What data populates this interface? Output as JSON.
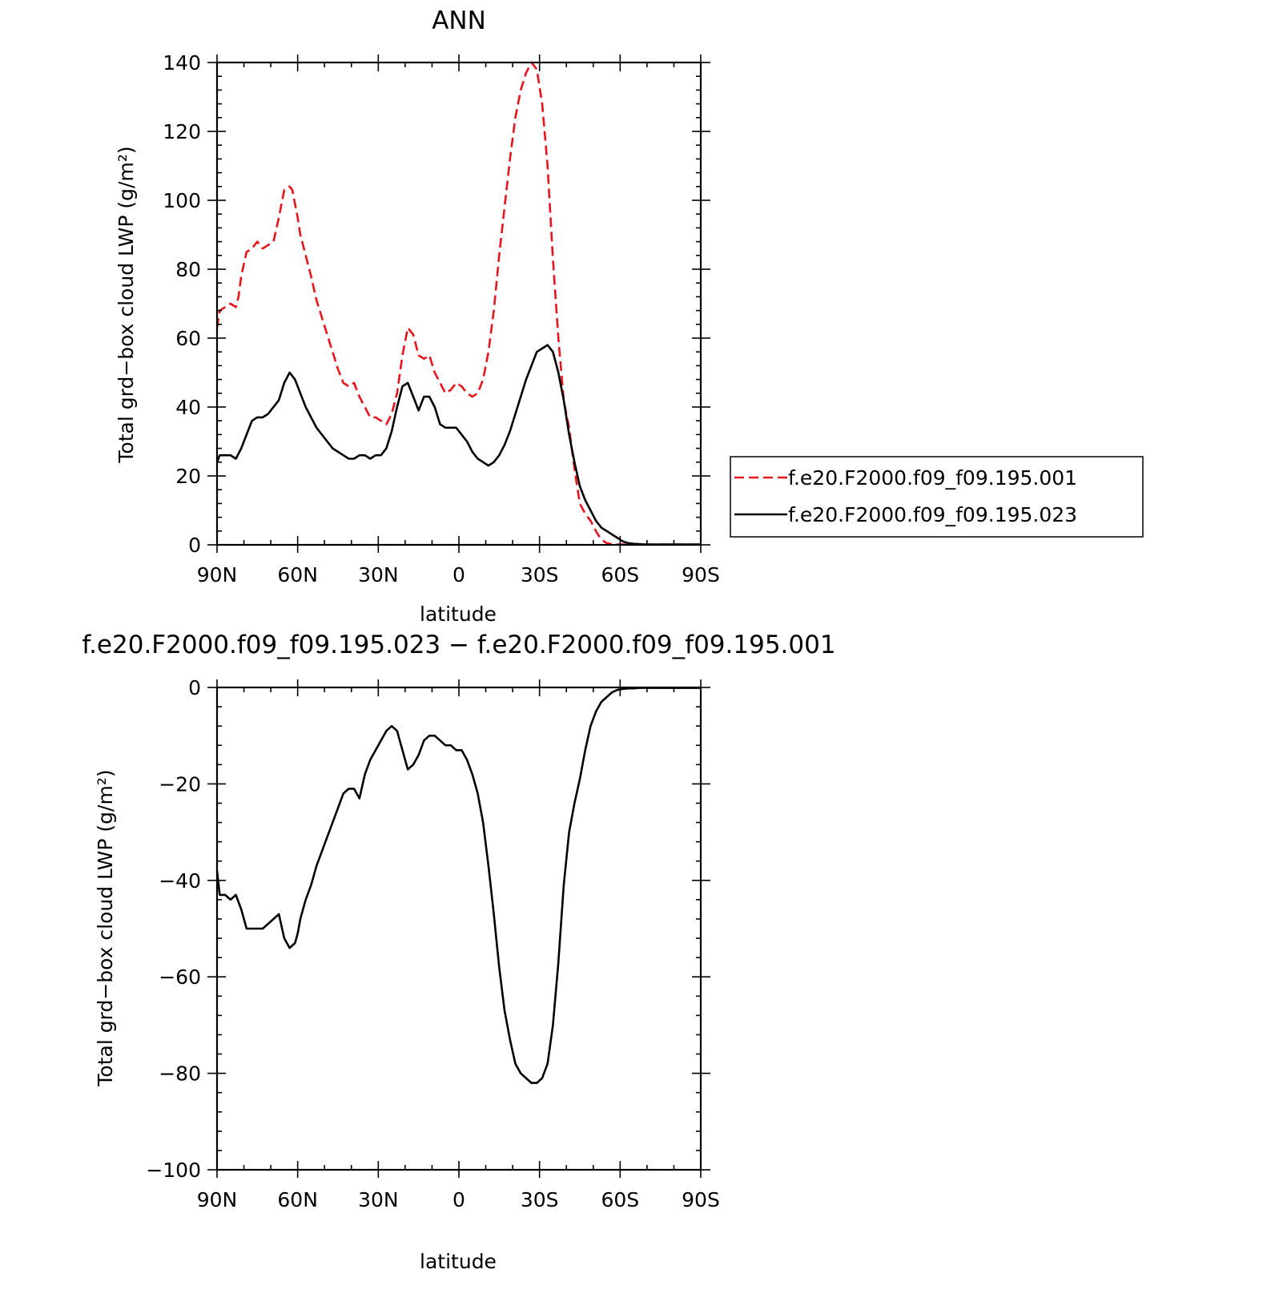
{
  "chart_data": [
    {
      "type": "line",
      "title": "ANN",
      "xlabel": "latitude",
      "ylabel": "Total grd−box cloud LWP (g/m²)",
      "ylim": [
        0,
        140
      ],
      "xlim": [
        90,
        -90
      ],
      "xtick_labels": [
        "90N",
        "60N",
        "30N",
        "0",
        "30S",
        "60S",
        "90S"
      ],
      "ytick_labels": [
        "0",
        "20",
        "40",
        "60",
        "80",
        "100",
        "120",
        "140"
      ],
      "legend_position": "right",
      "series": [
        {
          "name": "f.e20.F2000.f09_f09.195.001",
          "color": "#e8141c",
          "dash": "dashed",
          "x": [
            90,
            89,
            87,
            85,
            83,
            82,
            81,
            79,
            77,
            75,
            73,
            71,
            69,
            67,
            65,
            63,
            62,
            61,
            60,
            59,
            57,
            55,
            53,
            51,
            49,
            47,
            45,
            43,
            41,
            39,
            37,
            35,
            33,
            31,
            29,
            27,
            25,
            23,
            21,
            19,
            17,
            15,
            13,
            11,
            9,
            7,
            5,
            3,
            1,
            -1,
            -3,
            -5,
            -7,
            -9,
            -11,
            -13,
            -15,
            -17,
            -19,
            -21,
            -23,
            -25,
            -27,
            -29,
            -31,
            -33,
            -35,
            -37,
            -39,
            -41,
            -43,
            -45,
            -47,
            -49,
            -51,
            -53,
            -55,
            -57,
            -59,
            -61,
            -63,
            -65,
            -67,
            -69,
            -71,
            -73,
            -75,
            -77,
            -79,
            -81,
            -83,
            -85,
            -87,
            -89,
            -90
          ],
          "y": [
            63,
            68,
            69,
            70,
            69,
            72,
            78,
            85,
            86,
            88,
            86,
            87,
            88,
            95,
            103,
            104,
            103,
            99,
            95,
            90,
            84,
            78,
            71,
            66,
            61,
            56,
            51,
            47,
            46,
            47,
            43,
            40,
            37,
            37,
            36,
            35,
            38,
            44,
            55,
            63,
            61,
            55,
            54,
            55,
            50,
            47,
            44,
            45,
            47,
            46,
            44,
            43,
            44,
            48,
            56,
            68,
            84,
            98,
            112,
            124,
            132,
            137,
            140,
            138,
            128,
            110,
            83,
            60,
            42,
            34,
            22,
            12,
            9,
            7,
            4,
            1.5,
            0.5,
            0.2,
            0.1,
            0.1,
            0.1,
            0.1,
            0.1,
            0.1,
            0.1,
            0.1,
            0.1,
            0.1,
            0.1,
            0.1,
            0.1,
            0.1,
            0.1,
            0.1,
            0.1
          ]
        },
        {
          "name": "f.e20.F2000.f09_f09.195.023",
          "color": "#000000",
          "dash": "solid",
          "x": [
            90,
            89,
            87,
            85,
            83,
            81,
            79,
            77,
            75,
            73,
            71,
            69,
            67,
            65,
            63,
            61,
            60,
            59,
            57,
            55,
            53,
            51,
            49,
            47,
            45,
            43,
            41,
            39,
            37,
            35,
            33,
            31,
            29,
            27,
            25,
            23,
            21,
            19,
            17,
            15,
            13,
            11,
            9,
            7,
            5,
            3,
            1,
            -1,
            -3,
            -5,
            -7,
            -9,
            -11,
            -13,
            -15,
            -17,
            -19,
            -21,
            -23,
            -25,
            -27,
            -29,
            -31,
            -33,
            -35,
            -37,
            -39,
            -41,
            -43,
            -45,
            -47,
            -49,
            -51,
            -53,
            -55,
            -57,
            -59,
            -61,
            -63,
            -65,
            -67,
            -69,
            -71,
            -73,
            -75,
            -77,
            -79,
            -81,
            -83,
            -85,
            -87,
            -89,
            -90
          ],
          "y": [
            24,
            26,
            26,
            26,
            25,
            28,
            32,
            36,
            37,
            37,
            38,
            40,
            42,
            47,
            50,
            48,
            46,
            44,
            40,
            37,
            34,
            32,
            30,
            28,
            27,
            26,
            25,
            25,
            26,
            26,
            25,
            26,
            26,
            28,
            33,
            40,
            46,
            47,
            43,
            39,
            43,
            43,
            40,
            35,
            34,
            34,
            34,
            32,
            30,
            27,
            25,
            24,
            23,
            24,
            26,
            29,
            33,
            38,
            43,
            48,
            52,
            56,
            57,
            58,
            56,
            50,
            42,
            32,
            24,
            17,
            13,
            10,
            7,
            5,
            4,
            3,
            2,
            1,
            0.5,
            0.3,
            0.2,
            0.1,
            0.1,
            0.1,
            0.1,
            0.1,
            0.1,
            0.1,
            0.1,
            0.1,
            0.1,
            0.1,
            0.1
          ]
        }
      ]
    },
    {
      "type": "line",
      "title": "f.e20.F2000.f09_f09.195.023 − f.e20.F2000.f09_f09.195.001",
      "xlabel": "latitude",
      "ylabel": "Total grd−box cloud LWP (g/m²)",
      "ylim": [
        -100,
        0
      ],
      "xlim": [
        90,
        -90
      ],
      "xtick_labels": [
        "90N",
        "60N",
        "30N",
        "0",
        "30S",
        "60S",
        "90S"
      ],
      "ytick_labels": [
        "0",
        "−20",
        "−40",
        "−60",
        "−80",
        "−100"
      ],
      "series": [
        {
          "color": "#000000",
          "dash": "solid",
          "x": [
            90,
            89,
            87,
            85,
            83,
            81,
            79,
            77,
            75,
            73,
            71,
            69,
            67,
            65,
            63,
            61,
            60,
            59,
            57,
            55,
            53,
            51,
            49,
            47,
            45,
            43,
            41,
            39,
            37,
            35,
            33,
            31,
            29,
            27,
            25,
            23,
            21,
            19,
            17,
            15,
            13,
            11,
            9,
            7,
            5,
            3,
            1,
            -1,
            -3,
            -5,
            -7,
            -9,
            -11,
            -13,
            -15,
            -17,
            -19,
            -21,
            -23,
            -25,
            -27,
            -29,
            -31,
            -33,
            -35,
            -37,
            -39,
            -41,
            -43,
            -45,
            -47,
            -49,
            -51,
            -53,
            -55,
            -57,
            -59,
            -61,
            -63,
            -65,
            -67,
            -69,
            -71,
            -73,
            -75,
            -77,
            -79,
            -81,
            -83,
            -85,
            -87,
            -89,
            -90
          ],
          "y": [
            -38,
            -43,
            -43,
            -44,
            -43,
            -46,
            -50,
            -50,
            -50,
            -50,
            -49,
            -48,
            -47,
            -52,
            -54,
            -53,
            -51,
            -48,
            -44,
            -41,
            -37,
            -34,
            -31,
            -28,
            -25,
            -22,
            -21,
            -21,
            -23,
            -18,
            -15,
            -13,
            -11,
            -9,
            -8,
            -9,
            -13,
            -17,
            -16,
            -14,
            -11,
            -10,
            -10,
            -11,
            -12,
            -12,
            -13,
            -13,
            -15,
            -18,
            -22,
            -28,
            -37,
            -47,
            -58,
            -67,
            -73,
            -78,
            -80,
            -81,
            -82,
            -82,
            -81,
            -78,
            -70,
            -57,
            -41,
            -30,
            -24,
            -19,
            -13,
            -8,
            -5,
            -3,
            -2,
            -1,
            -0.5,
            -0.3,
            -0.2,
            -0.2,
            -0.1,
            -0.1,
            -0.1,
            -0.1,
            -0.1,
            -0.1,
            -0.1,
            -0.1,
            -0.1,
            -0.1,
            -0.1,
            -0.1,
            -0.1
          ]
        }
      ]
    }
  ]
}
